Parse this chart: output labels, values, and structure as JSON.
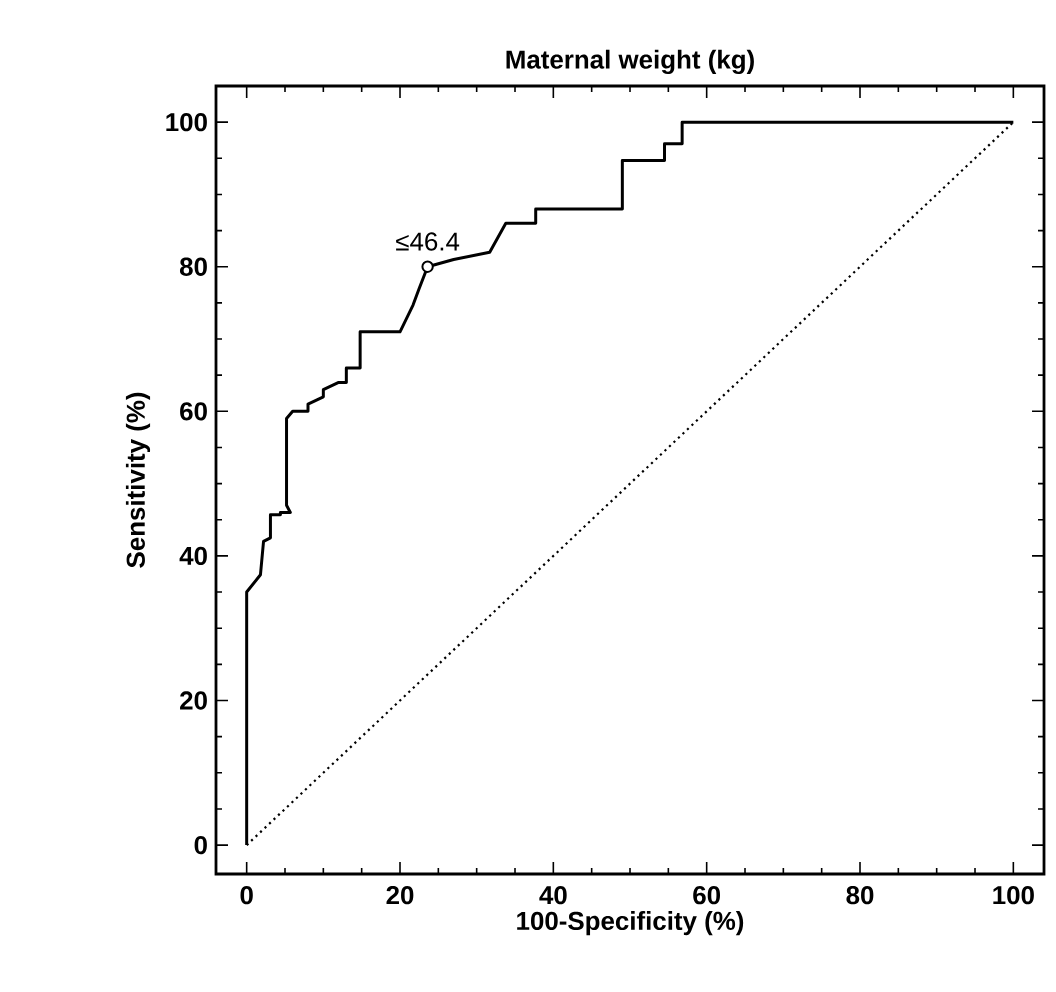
{
  "chart_data": {
    "type": "line",
    "title": "Maternal weight (kg)",
    "xlabel": "100-Specificity (%)",
    "ylabel": "Sensitivity (%)",
    "xlim": [
      -4,
      104
    ],
    "ylim": [
      -4,
      105
    ],
    "xticks": [
      0,
      20,
      40,
      60,
      80,
      100
    ],
    "yticks": [
      0,
      20,
      40,
      60,
      80,
      100
    ],
    "grid": false,
    "series": [
      {
        "line_style": "solid",
        "color": "#000000",
        "x": [
          0,
          0,
          1.8,
          2.2,
          3.1,
          3.1,
          4.4,
          4.4,
          5.7,
          5.2,
          5.2,
          6,
          8,
          8,
          10,
          10,
          12,
          13,
          13,
          14,
          14.8,
          14.8,
          20,
          21.7,
          22.5,
          23.6,
          27,
          31.7,
          33.8,
          37.7,
          37.7,
          48,
          49,
          49,
          54.5,
          54.5,
          56.8,
          56.8,
          100
        ],
        "values": [
          0,
          35,
          37.4,
          42,
          42.5,
          45.7,
          45.7,
          46,
          46,
          47,
          59,
          60,
          60,
          61,
          62,
          63,
          64,
          64,
          66,
          66,
          66,
          71,
          71,
          74.7,
          77,
          80,
          81,
          82,
          86,
          86,
          88,
          88,
          88,
          94.7,
          94.7,
          97,
          97,
          100,
          100
        ]
      },
      {
        "line_style": "dotted",
        "color": "#000000",
        "x": [
          0,
          100
        ],
        "values": [
          0,
          100
        ]
      },
      {
        "type": "scatter",
        "marker": "circle",
        "color": "#000000",
        "x": [
          23.6
        ],
        "values": [
          80
        ]
      }
    ],
    "annotations": [
      {
        "text": "≤46.4",
        "x": 23.6,
        "y": 80
      }
    ]
  }
}
